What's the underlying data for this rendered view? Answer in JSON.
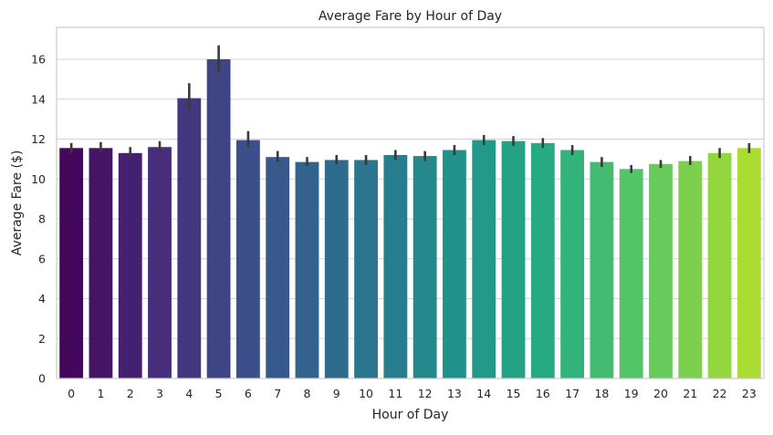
{
  "chart_data": {
    "type": "bar",
    "title": "Average Fare by Hour of Day",
    "xlabel": "Hour of Day",
    "ylabel": "Average Fare ($)",
    "categories": [
      "0",
      "1",
      "2",
      "3",
      "4",
      "5",
      "6",
      "7",
      "8",
      "9",
      "10",
      "11",
      "12",
      "13",
      "14",
      "15",
      "16",
      "17",
      "18",
      "19",
      "20",
      "21",
      "22",
      "23"
    ],
    "values": [
      11.55,
      11.55,
      11.3,
      11.6,
      14.05,
      16.0,
      11.95,
      11.1,
      10.85,
      10.95,
      10.95,
      11.2,
      11.15,
      11.45,
      11.95,
      11.9,
      11.8,
      11.45,
      10.85,
      10.5,
      10.75,
      10.9,
      11.3,
      11.55
    ],
    "error_low": [
      11.3,
      11.3,
      11.05,
      11.3,
      13.45,
      15.35,
      11.6,
      10.85,
      10.65,
      10.75,
      10.7,
      10.95,
      10.9,
      11.2,
      11.7,
      11.65,
      11.55,
      11.2,
      10.6,
      10.3,
      10.55,
      10.7,
      11.05,
      11.3
    ],
    "error_high": [
      11.8,
      11.85,
      11.6,
      11.9,
      14.8,
      16.7,
      12.4,
      11.4,
      11.1,
      11.2,
      11.2,
      11.45,
      11.4,
      11.7,
      12.2,
      12.15,
      12.05,
      11.7,
      11.1,
      10.7,
      10.95,
      11.15,
      11.55,
      11.8
    ],
    "ylim": [
      0,
      17.6
    ],
    "yticks": [
      0,
      2,
      4,
      6,
      8,
      10,
      12,
      14,
      16
    ],
    "grid": "horizontal",
    "palette": "viridis",
    "colors": {
      "grid": "#d3d3d3",
      "frame": "#cccccc",
      "error_bar": "#3a3a3a",
      "text": "#262626"
    }
  }
}
